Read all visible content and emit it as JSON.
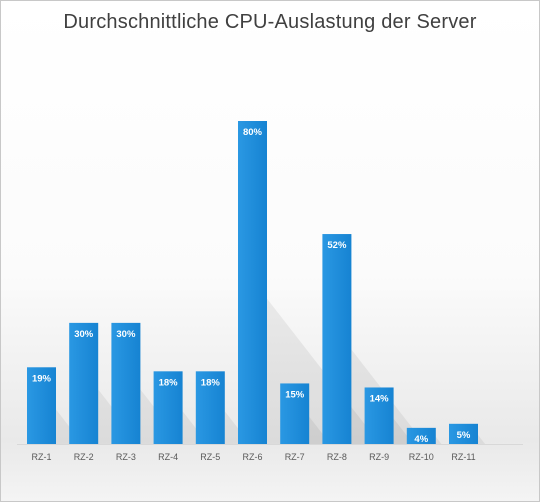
{
  "chart_data": {
    "type": "bar",
    "title": "Durchschnittliche CPU-Auslastung der Server",
    "categories": [
      "RZ-1",
      "RZ-2",
      "RZ-3",
      "RZ-4",
      "RZ-5",
      "RZ-6",
      "RZ-7",
      "RZ-8",
      "RZ-9",
      "RZ-10",
      "RZ-11"
    ],
    "values": [
      19,
      30,
      30,
      18,
      18,
      80,
      15,
      52,
      14,
      4,
      5
    ],
    "data_labels": [
      "19%",
      "30%",
      "30%",
      "18%",
      "18%",
      "80%",
      "15%",
      "52%",
      "14%",
      "4%",
      "5%"
    ],
    "xlabel": "",
    "ylabel": "",
    "ylim": [
      0,
      80
    ],
    "grid": false,
    "legend": "none",
    "bar_color": "#1f8fdc"
  }
}
